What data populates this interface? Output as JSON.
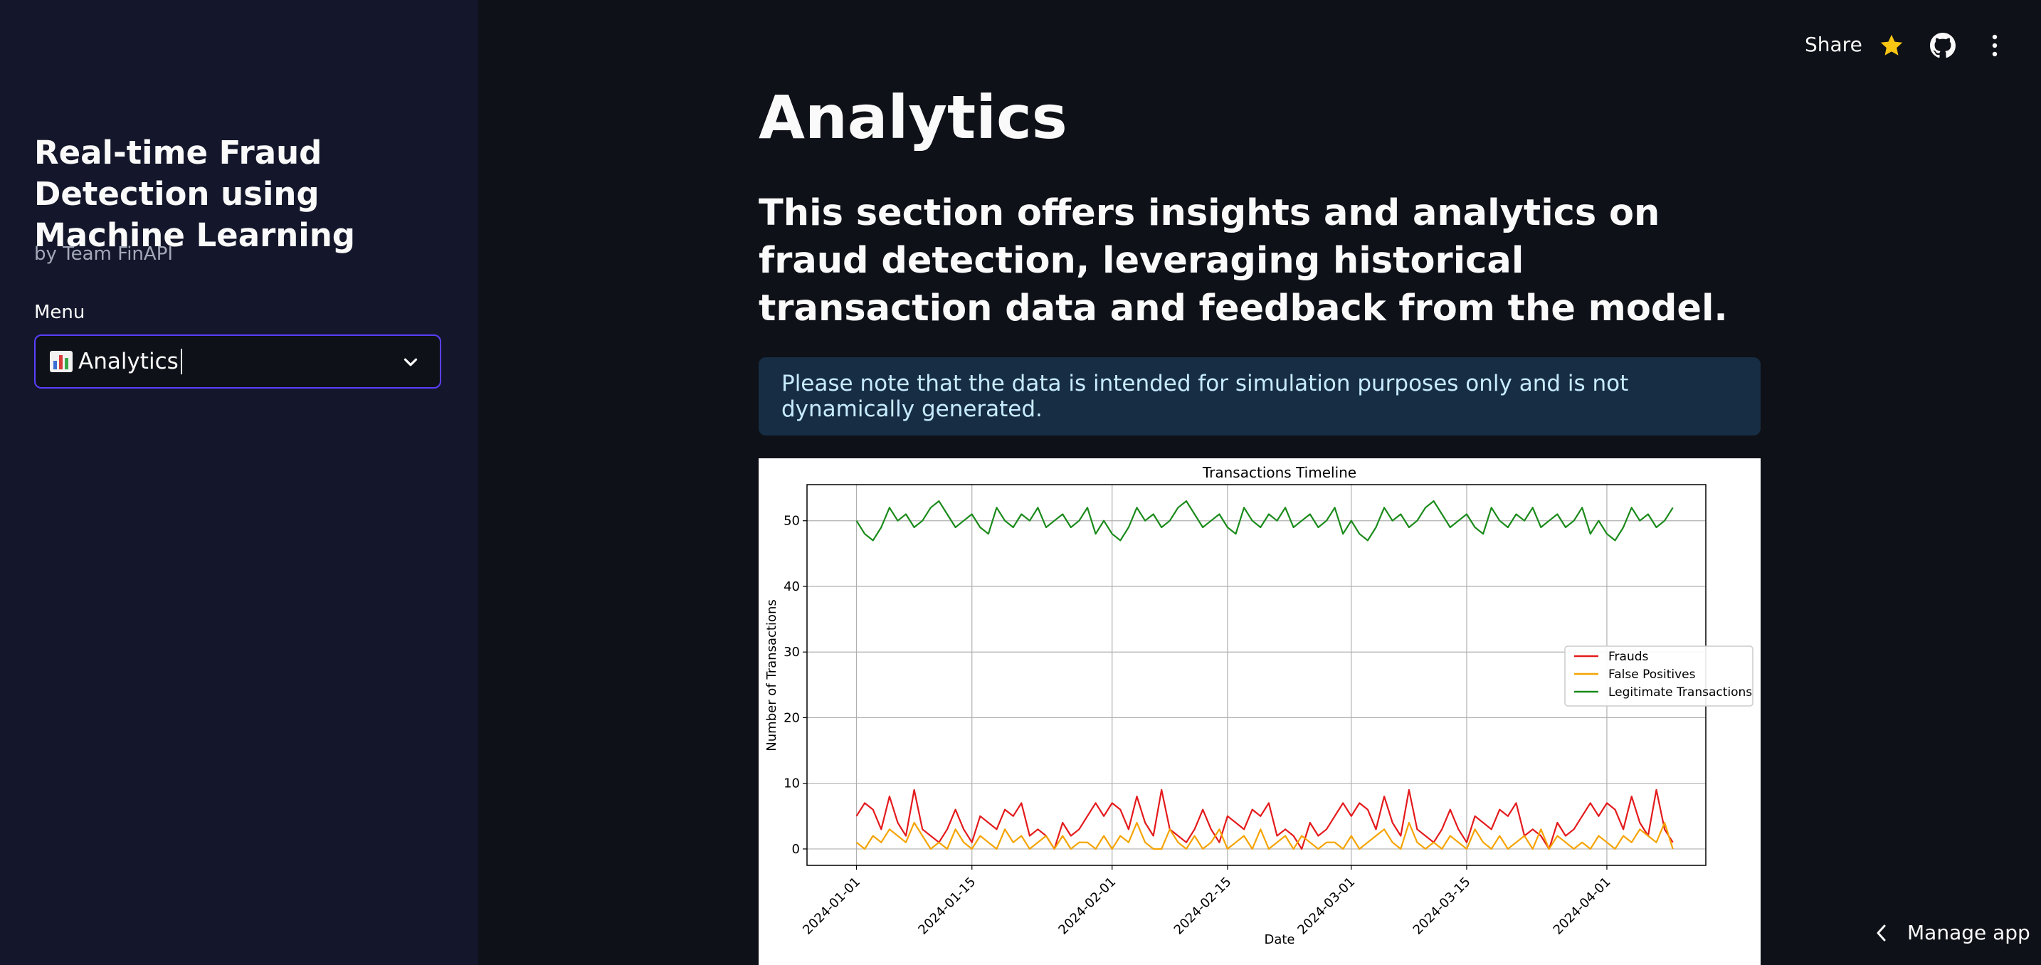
{
  "sidebar": {
    "app_title": "Real-time Fraud Detection using Machine Learning",
    "byline": "by Team FinAPI",
    "menu_label": "Menu",
    "menu_selected": "Analytics"
  },
  "toolbar": {
    "share_label": "Share",
    "icons": [
      "star-icon",
      "github-icon",
      "more-vertical-icon"
    ]
  },
  "main": {
    "title": "Analytics",
    "subtitle": "This section offers insights and analytics on fraud detection, leveraging historical transaction data and feedback from the model.",
    "info_text": "Please note that the data is intended for simulation purposes only and is not dynamically generated."
  },
  "footer": {
    "manage_app_label": "Manage app"
  },
  "colors": {
    "accent_border": "#5b3fff",
    "info_bg": "#172d43",
    "info_text": "#c7ebff",
    "star": "#f9c513"
  },
  "chart_data": {
    "type": "line",
    "title": "Transactions Timeline",
    "xlabel": "Date",
    "ylabel": "Number of Transactions",
    "ylim": [
      -2.5,
      55.5
    ],
    "xlim": [
      "2023-12-26",
      "2024-04-13"
    ],
    "x_start": "2024-01-01",
    "x_ticks": [
      "2024-01-01",
      "2024-01-15",
      "2024-02-01",
      "2024-02-15",
      "2024-03-01",
      "2024-03-15",
      "2024-04-01"
    ],
    "y_ticks": [
      0,
      10,
      20,
      30,
      40,
      50
    ],
    "grid": true,
    "legend_position": "center-right",
    "series": [
      {
        "name": "Frauds",
        "color": "#e41a1c",
        "values": [
          5,
          7,
          6,
          3,
          8,
          4,
          2,
          9,
          3,
          2,
          1,
          3,
          6,
          3,
          1,
          5,
          4,
          3,
          6,
          5,
          7,
          2,
          3,
          2,
          0,
          4,
          2,
          3,
          5,
          7,
          5,
          7,
          6,
          3,
          8,
          4,
          2,
          9,
          3,
          2,
          1,
          3,
          6,
          3,
          1,
          5,
          4,
          3,
          6,
          5,
          7,
          2,
          3,
          2,
          0,
          4,
          2,
          3,
          5,
          7,
          5,
          7,
          6,
          3,
          8,
          4,
          2,
          9,
          3,
          2,
          1,
          3,
          6,
          3,
          1,
          5,
          4,
          3,
          6,
          5,
          7,
          2,
          3,
          2,
          0,
          4,
          2,
          3,
          5,
          7,
          5,
          7,
          6,
          3,
          8,
          4,
          2,
          9,
          3,
          1
        ]
      },
      {
        "name": "False Positives",
        "color": "#f5a300",
        "values": [
          1,
          0,
          2,
          1,
          3,
          2,
          1,
          4,
          2,
          0,
          1,
          0,
          3,
          1,
          0,
          2,
          1,
          0,
          3,
          1,
          2,
          0,
          1,
          2,
          0,
          2,
          0,
          1,
          1,
          0,
          2,
          0,
          2,
          1,
          4,
          1,
          0,
          0,
          3,
          1,
          0,
          2,
          0,
          1,
          3,
          0,
          1,
          2,
          0,
          3,
          0,
          1,
          2,
          0,
          2,
          1,
          0,
          1,
          1,
          0,
          2,
          0,
          1,
          2,
          3,
          1,
          0,
          4,
          1,
          0,
          1,
          0,
          2,
          1,
          0,
          3,
          1,
          0,
          2,
          0,
          1,
          2,
          0,
          3,
          0,
          2,
          1,
          0,
          1,
          0,
          2,
          1,
          0,
          2,
          1,
          3,
          2,
          1,
          4,
          0
        ]
      },
      {
        "name": "Legitimate Transactions",
        "color": "#1a8a1a",
        "values": [
          50,
          48,
          47,
          49,
          52,
          50,
          51,
          49,
          50,
          52,
          53,
          51,
          49,
          50,
          51,
          49,
          48,
          52,
          50,
          49,
          51,
          50,
          52,
          49,
          50,
          51,
          49,
          50,
          52,
          48,
          50,
          48,
          47,
          49,
          52,
          50,
          51,
          49,
          50,
          52,
          53,
          51,
          49,
          50,
          51,
          49,
          48,
          52,
          50,
          49,
          51,
          50,
          52,
          49,
          50,
          51,
          49,
          50,
          52,
          48,
          50,
          48,
          47,
          49,
          52,
          50,
          51,
          49,
          50,
          52,
          53,
          51,
          49,
          50,
          51,
          49,
          48,
          52,
          50,
          49,
          51,
          50,
          52,
          49,
          50,
          51,
          49,
          50,
          52,
          48,
          50,
          48,
          47,
          49,
          52,
          50,
          51,
          49,
          50,
          52
        ]
      }
    ]
  }
}
